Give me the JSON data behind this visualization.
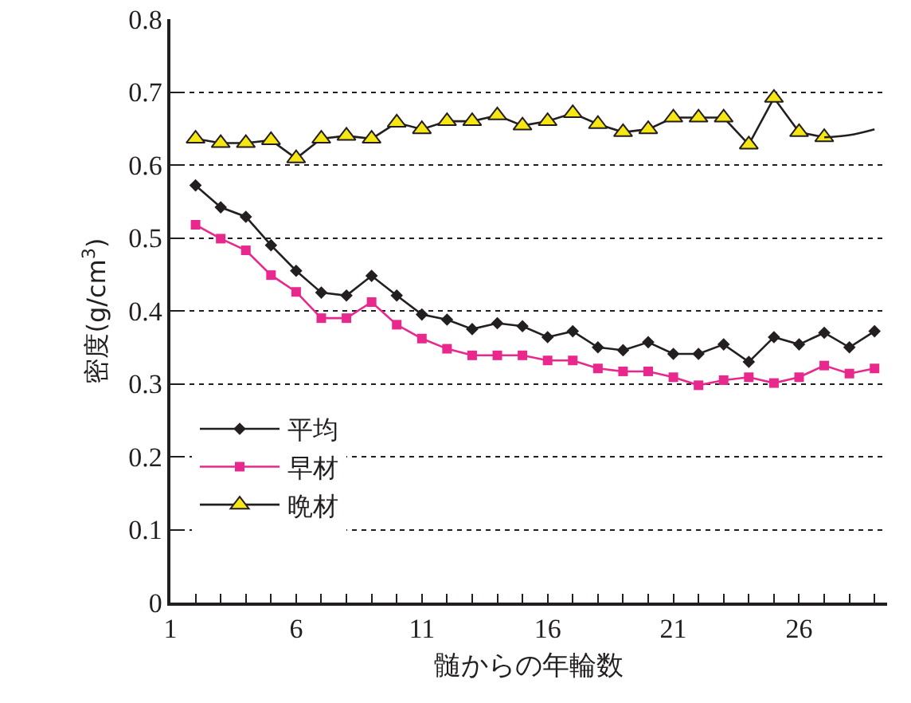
{
  "chart_data": {
    "type": "line",
    "xlabel": "髄からの年輪数",
    "ylabel": "密度(g/cm$^{3}$)",
    "x": [
      2,
      3,
      4,
      5,
      6,
      7,
      8,
      9,
      10,
      11,
      12,
      13,
      14,
      15,
      16,
      17,
      18,
      19,
      20,
      21,
      22,
      23,
      24,
      25,
      26,
      27,
      28,
      29
    ],
    "series": [
      {
        "name": "平均",
        "color": "#231f20",
        "marker": "diamond",
        "values": [
          0.572,
          0.542,
          0.529,
          0.49,
          0.455,
          0.425,
          0.421,
          0.448,
          0.421,
          0.395,
          0.388,
          0.375,
          0.383,
          0.379,
          0.364,
          0.372,
          0.35,
          0.346,
          0.357,
          0.341,
          0.341,
          0.354,
          0.33,
          0.364,
          0.354,
          0.37,
          0.35,
          0.372
        ]
      },
      {
        "name": "早材",
        "color": "#e8288c",
        "marker": "square",
        "values": [
          0.518,
          0.499,
          0.483,
          0.449,
          0.426,
          0.39,
          0.39,
          0.412,
          0.381,
          0.362,
          0.348,
          0.339,
          0.339,
          0.339,
          0.332,
          0.332,
          0.321,
          0.317,
          0.317,
          0.309,
          0.298,
          0.305,
          0.309,
          0.301,
          0.309,
          0.325,
          0.314,
          0.321
        ]
      },
      {
        "name": "晩材",
        "color": "#231f20",
        "marker": "triangle",
        "x": [
          2,
          3,
          4,
          5,
          6,
          7,
          8,
          9,
          10,
          11,
          12,
          13,
          14,
          15,
          16,
          17,
          18,
          19,
          20,
          21,
          22,
          23,
          24,
          25,
          26,
          27
        ],
        "values": [
          0.636,
          0.63,
          0.63,
          0.634,
          0.609,
          0.636,
          0.64,
          0.636,
          0.658,
          0.649,
          0.66,
          0.66,
          0.668,
          0.654,
          0.66,
          0.671,
          0.656,
          0.645,
          0.649,
          0.665,
          0.665,
          0.665,
          0.628,
          0.692,
          0.645,
          0.638
        ]
      },
      {
        "color": "#231f20",
        "marker": "none",
        "x": [
          27,
          28,
          29
        ],
        "values": [
          0.638,
          0.641,
          0.649
        ]
      }
    ],
    "xlim": [
      1,
      29.5
    ],
    "xticks": [
      1,
      {
        "value": 2,
        "label": null
      },
      {
        "value": 3,
        "label": null
      },
      {
        "value": 4,
        "label": null
      },
      {
        "value": 5,
        "label": null
      },
      6,
      {
        "value": 7,
        "label": null
      },
      {
        "value": 8,
        "label": null
      },
      {
        "value": 9,
        "label": null
      },
      {
        "value": 10,
        "label": null
      },
      11,
      {
        "value": 12,
        "label": null
      },
      {
        "value": 13,
        "label": null
      },
      {
        "value": 14,
        "label": null
      },
      {
        "value": 15,
        "label": null
      },
      16,
      {
        "value": 17,
        "label": null
      },
      {
        "value": 18,
        "label": null
      },
      {
        "value": 19,
        "label": null
      },
      {
        "value": 20,
        "label": null
      },
      21,
      {
        "value": 22,
        "label": null
      },
      {
        "value": 23,
        "label": null
      },
      {
        "value": 24,
        "label": null
      },
      {
        "value": 25,
        "label": null
      },
      26,
      {
        "value": 27,
        "label": null
      },
      {
        "value": 28,
        "label": null
      },
      {
        "value": 29,
        "label": null
      }
    ],
    "ylim": [
      0,
      0.8
    ],
    "yticks": [
      0,
      0.1,
      0.2,
      0.3,
      0.4,
      0.5,
      0.6,
      0.7,
      0.8
    ],
    "grid": "y",
    "legend": "bottom left"
  }
}
